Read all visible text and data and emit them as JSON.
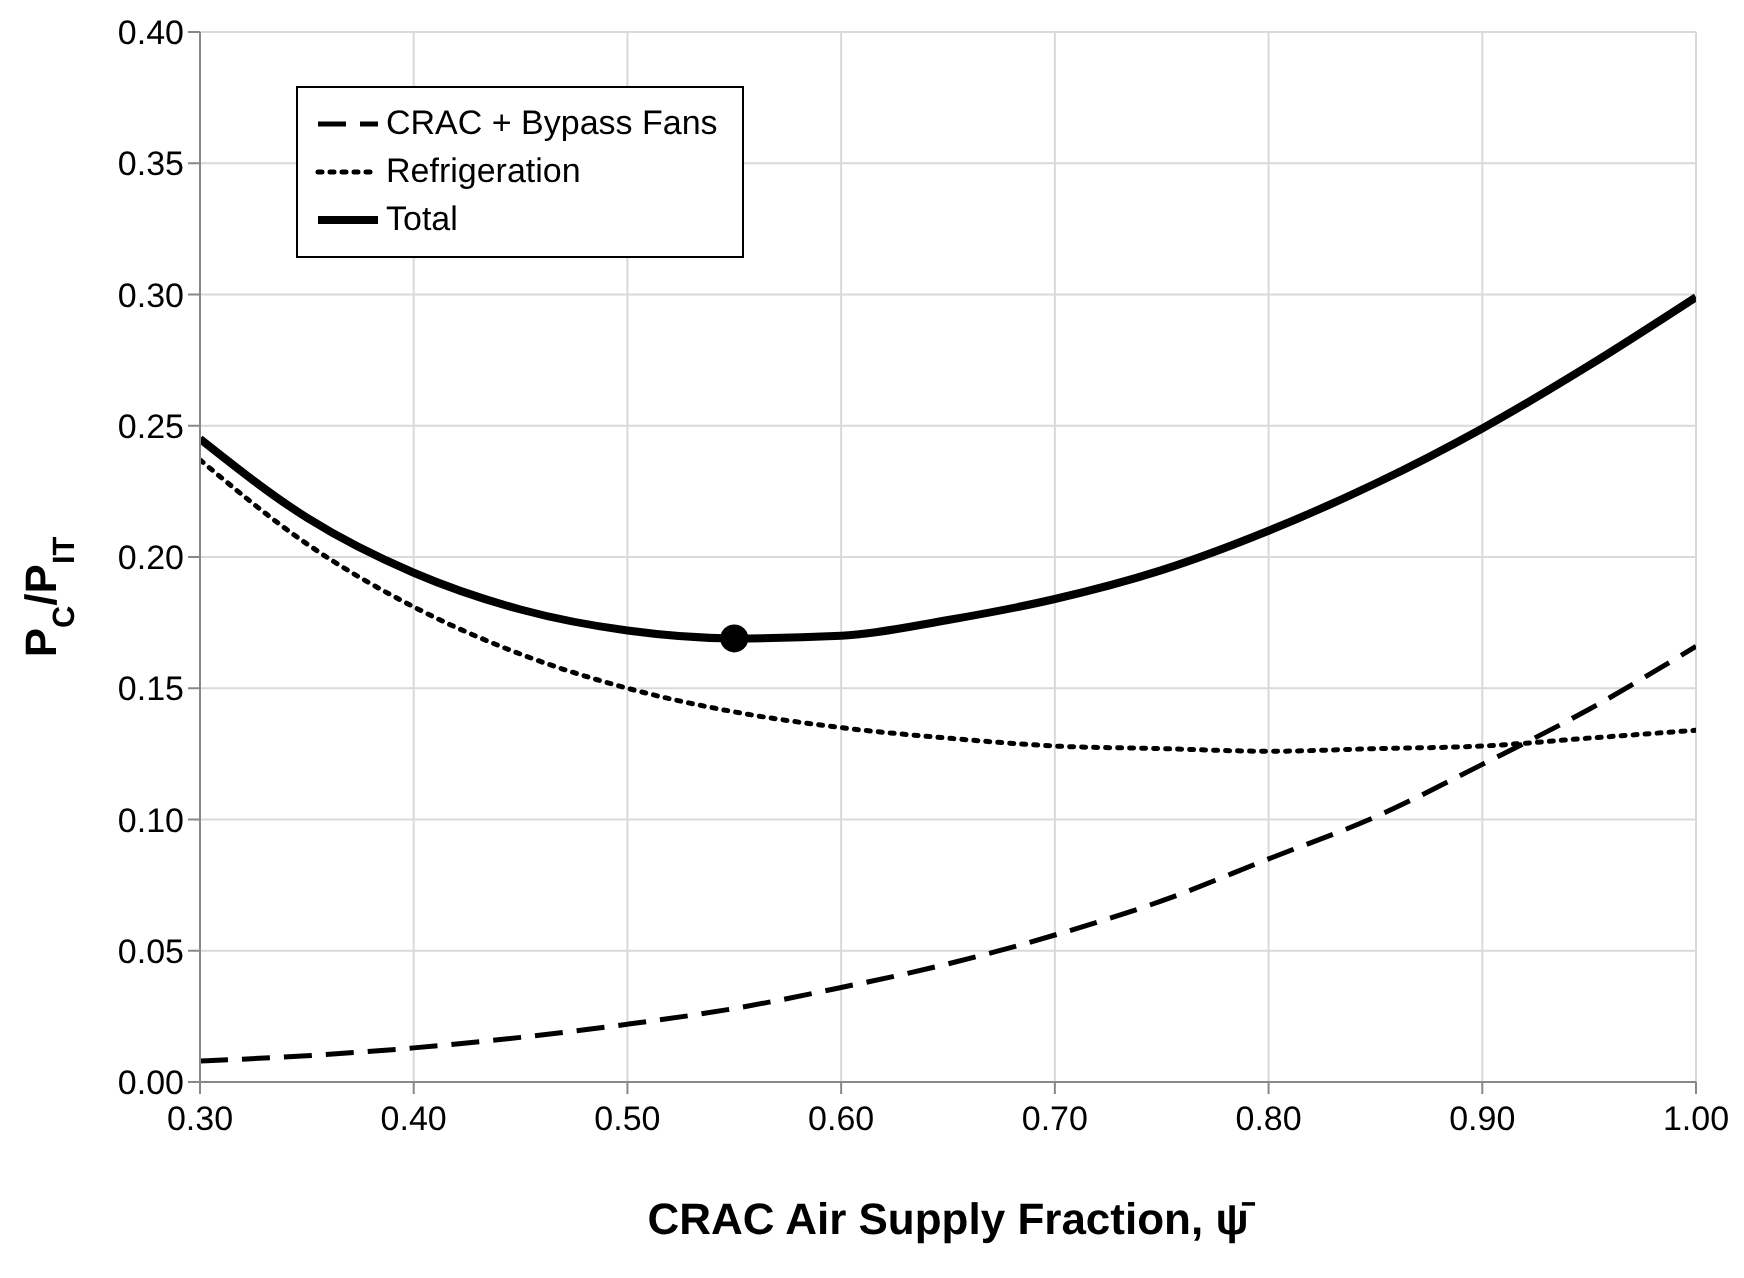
{
  "chart_data": {
    "type": "line",
    "xlabel": "CRAC Air Supply Fraction, ψ̄",
    "ylabel": "P$_{C}$/P$_{IT}$",
    "x": [
      0.3,
      0.35,
      0.4,
      0.45,
      0.5,
      0.55,
      0.6,
      0.65,
      0.7,
      0.75,
      0.8,
      0.85,
      0.9,
      0.95,
      1.0
    ],
    "series": [
      {
        "name": "CRAC + Bypass Fans",
        "color": "#000000",
        "line_style": "dashed",
        "values": [
          0.008,
          0.01,
          0.013,
          0.017,
          0.022,
          0.028,
          0.036,
          0.045,
          0.056,
          0.069,
          0.085,
          0.101,
          0.121,
          0.142,
          0.166
        ]
      },
      {
        "name": "Refrigeration",
        "color": "#000000",
        "line_style": "dotted",
        "values": [
          0.237,
          0.205,
          0.181,
          0.163,
          0.15,
          0.141,
          0.135,
          0.131,
          0.128,
          0.127,
          0.126,
          0.127,
          0.128,
          0.131,
          0.134
        ]
      },
      {
        "name": "Total",
        "color": "#000000",
        "line_style": "solid",
        "values": [
          0.245,
          0.215,
          0.194,
          0.18,
          0.172,
          0.169,
          0.17,
          0.176,
          0.184,
          0.195,
          0.21,
          0.228,
          0.249,
          0.273,
          0.299
        ]
      },
      {
        "type": "scatter",
        "color": "#000000",
        "marker": "circle",
        "x": [
          0.55
        ],
        "values": [
          0.169
        ]
      }
    ],
    "xlim": [
      0.3,
      1.0
    ],
    "xticks": [
      {
        "value": 0.3,
        "label": "0.30"
      },
      {
        "value": 0.4,
        "label": "0.40"
      },
      {
        "value": 0.5,
        "label": "0.50"
      },
      {
        "value": 0.6,
        "label": "0.60"
      },
      {
        "value": 0.7,
        "label": "0.70"
      },
      {
        "value": 0.8,
        "label": "0.80"
      },
      {
        "value": 0.9,
        "label": "0.90"
      },
      {
        "value": 1.0,
        "label": "1.00"
      }
    ],
    "ylim": [
      0,
      0.4
    ],
    "yticks": [
      {
        "value": 0,
        "label": "0.00"
      },
      {
        "value": 0.05,
        "label": "0.05"
      },
      {
        "value": 0.1,
        "label": "0.10"
      },
      {
        "value": 0.15,
        "label": "0.15"
      },
      {
        "value": 0.2,
        "label": "0.20"
      },
      {
        "value": 0.25,
        "label": "0.25"
      },
      {
        "value": 0.3,
        "label": "0.30"
      },
      {
        "value": 0.35,
        "label": "0.35"
      },
      {
        "value": 0.4,
        "label": "0.40"
      }
    ],
    "grid": true,
    "legend": "top left"
  }
}
